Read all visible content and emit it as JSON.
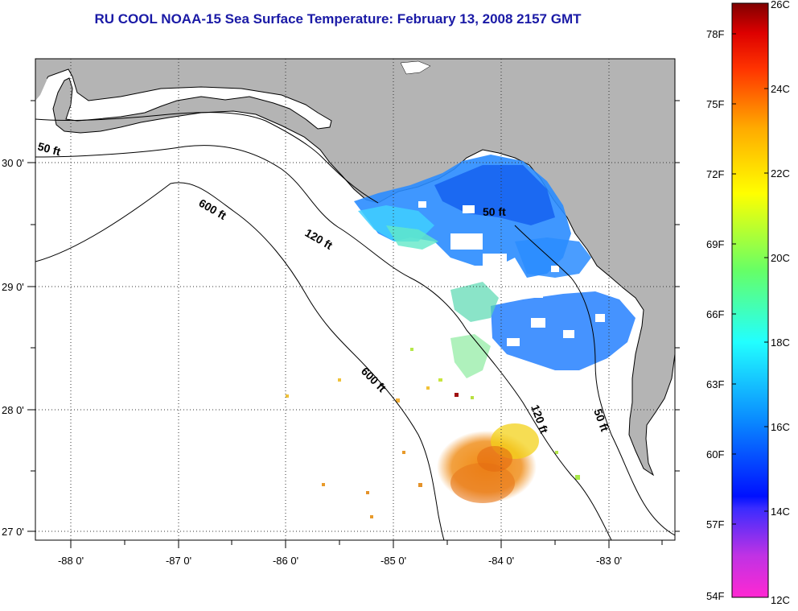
{
  "title": "RU COOL  NOAA-15  Sea Surface Temperature:  February 13, 2008 2157 GMT",
  "axes": {
    "longitude_labels": [
      "-88 0'",
      "-87 0'",
      "-86 0'",
      "-85 0'",
      "-84 0'",
      "-83 0'"
    ],
    "latitude_labels": [
      "30 0'",
      "29 0'",
      "28 0'",
      "27 0'"
    ]
  },
  "depth_contours": [
    "50 ft",
    "600 ft",
    "120 ft",
    "50 ft",
    "600 ft",
    "120 ft",
    "50 ft"
  ],
  "colorbar": {
    "fahrenheit_labels": [
      "78F",
      "75F",
      "72F",
      "69F",
      "66F",
      "63F",
      "60F",
      "57F",
      "54F"
    ],
    "celsius_labels": [
      "26C",
      "24C",
      "22C",
      "20C",
      "18C",
      "16C",
      "14C",
      "12C"
    ],
    "range_c": [
      12,
      26
    ],
    "colors": [
      "#ff28d2",
      "#9a3ae0",
      "#0010ff",
      "#0a8cff",
      "#22ffff",
      "#66ff66",
      "#ffff00",
      "#ffaa00",
      "#ff3300",
      "#ff0000",
      "#800000"
    ]
  },
  "colors": {
    "land": "#b4b4b4",
    "title": "#1a1aa6",
    "cold_water": "#1b7cff",
    "warm_water": "#f5901d"
  }
}
